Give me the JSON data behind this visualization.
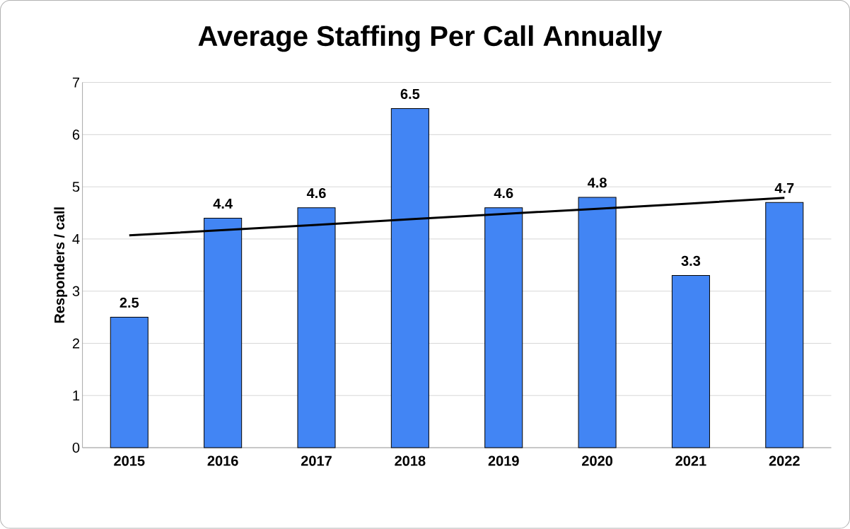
{
  "chart_data": {
    "type": "bar",
    "title": "Average Staffing Per Call Annually",
    "ylabel": "Responders / call",
    "categories": [
      "2015",
      "2016",
      "2017",
      "2018",
      "2019",
      "2020",
      "2021",
      "2022"
    ],
    "series": [
      {
        "color": "#4285f4",
        "values": [
          2.5,
          4.4,
          4.6,
          6.5,
          4.6,
          4.8,
          3.3,
          4.7
        ],
        "value_labels": [
          "2.5",
          "4.4",
          "4.6",
          "6.5",
          "4.6",
          "4.8",
          "3.3",
          "4.7"
        ]
      },
      {
        "type": "line",
        "color": "#000000",
        "values": [
          4.07,
          4.17,
          4.27,
          4.38,
          4.48,
          4.58,
          4.68,
          4.79
        ]
      }
    ],
    "ylim": [
      0,
      7
    ],
    "yticks": [
      0,
      1,
      2,
      3,
      4,
      5,
      6,
      7
    ],
    "grid": "y",
    "marker": "none",
    "line_style": "solid"
  }
}
